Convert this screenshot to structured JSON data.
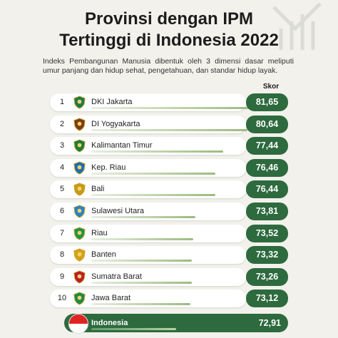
{
  "header": {
    "title_line1": "Provinsi dengan IPM",
    "title_line2": "Tertinggi di Indonesia 2022",
    "subtitle": "Indeks Pembangunan Manusia dibentuk oleh 3 dimensi dasar meliputi umur panjang dan hidup sehat, pengetahuan, dan standar hidup layak."
  },
  "chart_data": {
    "type": "bar",
    "title": "Provinsi dengan IPM Tertinggi di Indonesia 2022",
    "value_label": "Skor",
    "ranks": [
      "1",
      "2",
      "3",
      "4",
      "5",
      "6",
      "7",
      "8",
      "9",
      "10"
    ],
    "categories": [
      "DKI Jakarta",
      "DI Yogyakarta",
      "Kalimantan Timur",
      "Kep. Riau",
      "Bali",
      "Sulawesi Utara",
      "Riau",
      "Banten",
      "Sumatra Barat",
      "Jawa Barat"
    ],
    "values": [
      81.65,
      80.64,
      77.44,
      76.46,
      76.44,
      73.81,
      73.52,
      73.32,
      73.26,
      73.12
    ],
    "value_labels": [
      "81,65",
      "80,64",
      "77,44",
      "76,46",
      "76,44",
      "73,81",
      "73,52",
      "73,32",
      "73,26",
      "73,12"
    ],
    "national": {
      "name": "Indonesia",
      "value": 72.91,
      "value_label": "72,91"
    },
    "colors": {
      "score_bg": "#2d6a3e",
      "bar": "#9cbb7e",
      "background": "#f2f1ec"
    },
    "emblem_colors": [
      "#1f7a4a",
      "#7a3c12",
      "#1b7d3a",
      "#1f6fae",
      "#c79a1a",
      "#2a83c4",
      "#239447",
      "#d4a11a",
      "#b8202a",
      "#1d8a4b"
    ]
  }
}
